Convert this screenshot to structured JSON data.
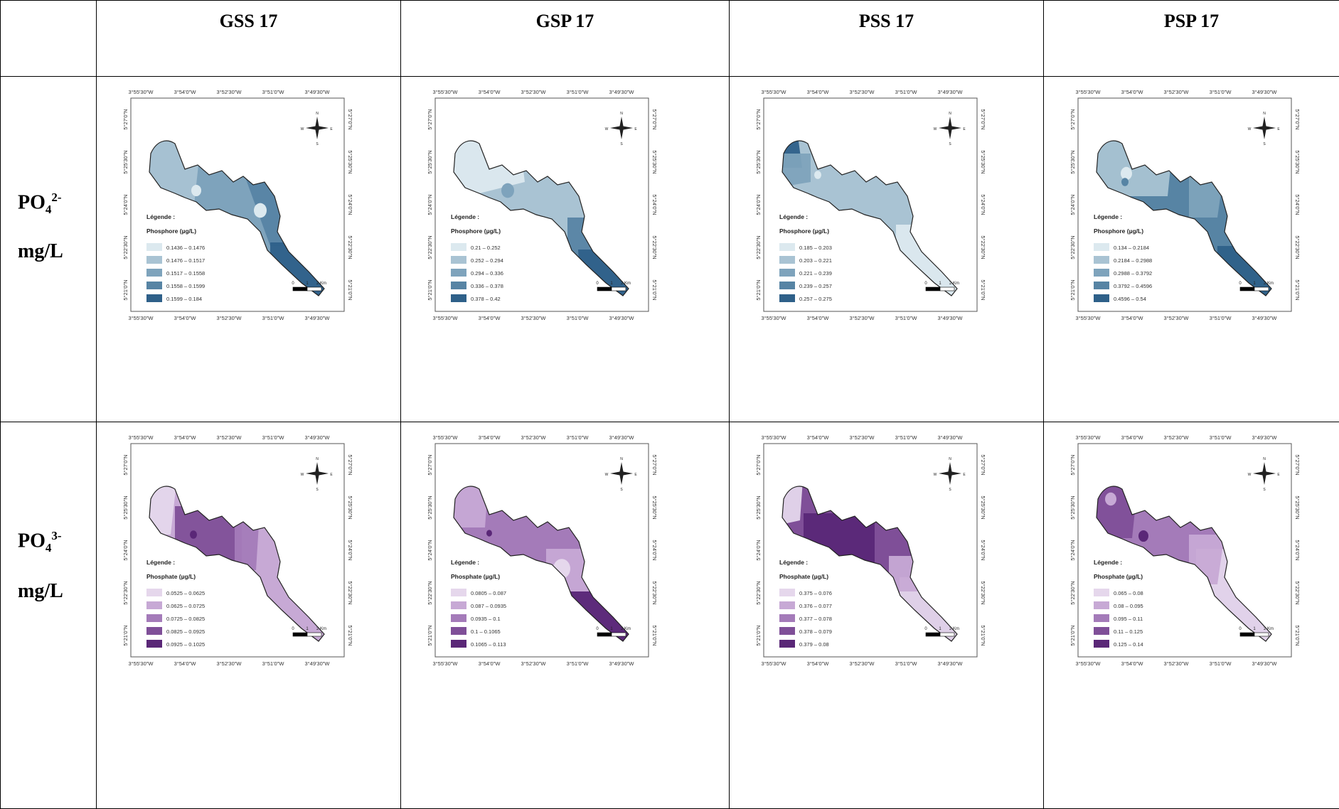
{
  "columns": [
    "GSS 17",
    "GSP 17",
    "PSS 17",
    "PSP 17"
  ],
  "rows": [
    {
      "param_base": "PO",
      "param_sub": "4",
      "param_sup": "2-",
      "unit": "mg/L",
      "legend_title": "Légende :",
      "variable": "Phosphore (µg/L)",
      "palette": [
        "#dce9ef",
        "#a9c3d3",
        "#7ea3bc",
        "#5784a4",
        "#2e6089"
      ]
    },
    {
      "param_base": "PO",
      "param_sub": "4",
      "param_sup": "3-",
      "unit": "mg/L",
      "legend_title": "Légende :",
      "variable": "Phosphate (µg/L)",
      "palette": [
        "#e5d7ec",
        "#c7a9d5",
        "#a47bb9",
        "#7f4f98",
        "#5a2777"
      ]
    }
  ],
  "maps": [
    [
      {
        "classes": [
          "0.1436 – 0.1476",
          "0.1476 – 0.1517",
          "0.1517 – 0.1558",
          "0.1558 – 0.1599",
          "0.1599 – 0.184"
        ],
        "top_ticks": [
          "3°55'30\"W",
          "3°54'0\"W",
          "3°52'30\"W",
          "3°51'0\"W",
          "3°49'30\"W"
        ],
        "bottom_ticks": [
          "3°55'30\"W",
          "3°54'0\"W",
          "3°52'30\"W",
          "3°51'0\"W",
          "3°49'30\"W"
        ],
        "lat_ticks": [
          "5°27'0\"N",
          "5°25'30\"N",
          "5°24'0\"N",
          "5°22'30\"N",
          "5°21'0\"N"
        ]
      },
      {
        "classes": [
          "0.21 – 0.252",
          "0.252 – 0.294",
          "0.294 – 0.336",
          "0.336 – 0.378",
          "0.378 – 0.42"
        ],
        "top_ticks": [
          "3°55'30\"W",
          "3°54'0\"W",
          "3°52'30\"W",
          "3°51'0\"W",
          "3°49'30\"W"
        ],
        "bottom_ticks": [
          "3°55'30\"W",
          "3°54'0\"W",
          "3°52'30\"W",
          "3°51'0\"W",
          "3°49'30\"W"
        ],
        "lat_ticks": [
          "5°27'0\"N",
          "5°25'30\"N",
          "5°24'0\"N",
          "5°22'30\"N",
          "5°21'0\"N"
        ]
      },
      {
        "classes": [
          "0.185 – 0.203",
          "0.203 – 0.221",
          "0.221 – 0.239",
          "0.239 – 0.257",
          "0.257 – 0.275"
        ],
        "top_ticks": [
          "3°55'30\"W",
          "3°54'0\"W",
          "3°52'30\"W",
          "3°51'0\"W",
          "3°49'30\"W"
        ],
        "bottom_ticks": [
          "3°55'30\"W",
          "3°54'0\"W",
          "3°52'30\"W",
          "3°51'0\"W",
          "3°49'30\"W"
        ],
        "lat_ticks": [
          "5°27'0\"N",
          "5°25'30\"N",
          "5°24'0\"N",
          "5°22'30\"N",
          "5°21'0\"N"
        ]
      },
      {
        "classes": [
          "0.134 – 0.2184",
          "0.2184 – 0.2988",
          "0.2988 – 0.3792",
          "0.3792 – 0.4596",
          "0.4596 – 0.54"
        ],
        "top_ticks": [
          "3°55'30\"W",
          "3°54'0\"W",
          "3°52'30\"W",
          "3°51'0\"W",
          "3°49'30\"W"
        ],
        "bottom_ticks": [
          "3°55'30\"W",
          "3°54'0\"W",
          "3°52'30\"W",
          "3°51'0\"W",
          "3°49'30\"W"
        ],
        "lat_ticks": [
          "5°27'0\"N",
          "5°25'30\"N",
          "5°24'0\"N",
          "5°22'30\"N",
          "5°21'0\"N"
        ]
      }
    ],
    [
      {
        "classes": [
          "0.0525 – 0.0625",
          "0.0625 – 0.0725",
          "0.0725 – 0.0825",
          "0.0825 – 0.0925",
          "0.0925 – 0.1025"
        ],
        "top_ticks": [
          "3°55'30\"W",
          "3°54'0\"W",
          "3°52'30\"W",
          "3°51'0\"W",
          "3°49'30\"W"
        ],
        "bottom_ticks": [
          "3°55'30\"W",
          "3°54'0\"W",
          "3°52'30\"W",
          "3°51'0\"W",
          "3°49'30\"W"
        ],
        "lat_ticks": [
          "5°27'0\"N",
          "5°25'30\"N",
          "5°24'0\"N",
          "5°22'30\"N",
          "5°21'0\"N"
        ]
      },
      {
        "classes": [
          "0.0805 – 0.087",
          "0.087 – 0.0935",
          "0.0935 – 0.1",
          "0.1 – 0.1065",
          "0.1065 – 0.113"
        ],
        "top_ticks": [
          "3°55'30\"W",
          "3°54'0\"W",
          "3°52'30\"W",
          "3°51'0\"W",
          "3°49'30\"W"
        ],
        "bottom_ticks": [
          "3°55'30\"W",
          "3°54'0\"W",
          "3°52'30\"W",
          "3°51'0\"W",
          "3°49'30\"W"
        ],
        "lat_ticks": [
          "5°27'0\"N",
          "5°25'30\"N",
          "5°24'0\"N",
          "5°22'30\"N",
          "5°21'0\"N"
        ]
      },
      {
        "classes": [
          "0.375 – 0.076",
          "0.376 – 0.077",
          "0.377 – 0.078",
          "0.378 – 0.079",
          "0.379 – 0.08"
        ],
        "top_ticks": [
          "3°55'30\"W",
          "3°54'0\"W",
          "3°52'30\"W",
          "3°51'0\"W",
          "3°49'30\"W"
        ],
        "bottom_ticks": [
          "3°55'30\"W",
          "3°54'0\"W",
          "3°52'30\"W",
          "3°51'0\"W",
          "3°49'30\"W"
        ],
        "lat_ticks": [
          "5°27'0\"N",
          "5°25'30\"N",
          "5°24'0\"N",
          "5°22'30\"N",
          "5°21'0\"N"
        ]
      },
      {
        "classes": [
          "0.065 – 0.08",
          "0.08 – 0.095",
          "0.095 – 0.11",
          "0.11 – 0.125",
          "0.125 – 0.14"
        ],
        "top_ticks": [
          "3°55'30\"W",
          "3°54'0\"W",
          "3°52'30\"W",
          "3°51'0\"W",
          "3°49'30\"W"
        ],
        "bottom_ticks": [
          "3°55'30\"W",
          "3°54'0\"W",
          "3°52'30\"W",
          "3°51'0\"W",
          "3°49'30\"W"
        ],
        "lat_ticks": [
          "5°27'0\"N",
          "5°25'30\"N",
          "5°24'0\"N",
          "5°22'30\"N",
          "5°21'0\"N"
        ]
      }
    ]
  ],
  "scale_bar": [
    "0",
    "1",
    "2 Km"
  ],
  "north_arrow": {
    "n": "N",
    "s": "S",
    "e": "E",
    "w": "W"
  }
}
